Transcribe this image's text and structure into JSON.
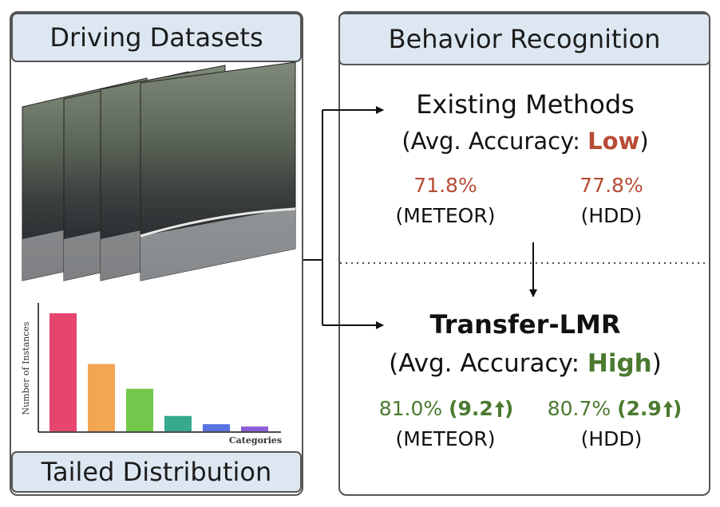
{
  "left": {
    "header": "Driving Datasets",
    "footer": "Tailed Distribution",
    "histogram": {
      "ylabel": "Number of Instances",
      "xlabel": "Categories",
      "values": [
        100,
        57,
        36,
        13,
        6,
        4
      ],
      "colors": [
        "#e6456e",
        "#f2a553",
        "#73c84b",
        "#36a98f",
        "#5a73e1",
        "#8c5bd6"
      ]
    }
  },
  "right": {
    "header": "Behavior Recognition",
    "existing": {
      "title": "Existing Methods",
      "sub_prefix": "(Avg. Accuracy: ",
      "sub_value": "Low",
      "sub_suffix": ")",
      "meteor_acc": "71.8%",
      "meteor_label": "(METEOR)",
      "hdd_acc": "77.8%",
      "hdd_label": "(HDD)"
    },
    "transfer": {
      "title": "Transfer-LMR",
      "sub_prefix": "(Avg. Accuracy: ",
      "sub_value": "High",
      "sub_suffix": ")",
      "meteor_acc": "81.0%",
      "meteor_gain": "9.2",
      "meteor_label": "(METEOR)",
      "hdd_acc": "80.7%",
      "hdd_gain": "2.9",
      "hdd_label": "(HDD)"
    }
  },
  "colors": {
    "low": "#b64c35",
    "high": "#4b7a2f",
    "header_fill": "#dde7f1"
  }
}
